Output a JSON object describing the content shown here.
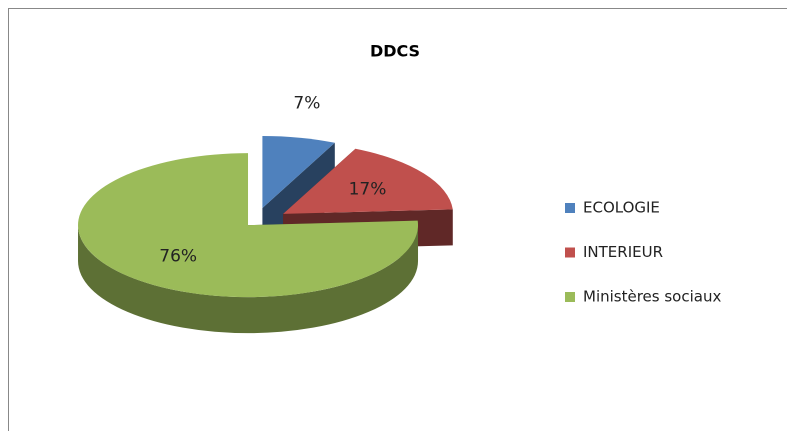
{
  "chart_data": {
    "type": "pie3d",
    "title": "DDCS",
    "categories": [
      "ECOLOGIE",
      "INTERIEUR",
      "Ministères sociaux"
    ],
    "values": [
      7,
      17,
      76
    ],
    "value_labels": [
      "7%",
      "17%",
      "76%"
    ],
    "colors": [
      "#4f81bd",
      "#c0504d",
      "#9bbb59"
    ],
    "legend": "right"
  }
}
